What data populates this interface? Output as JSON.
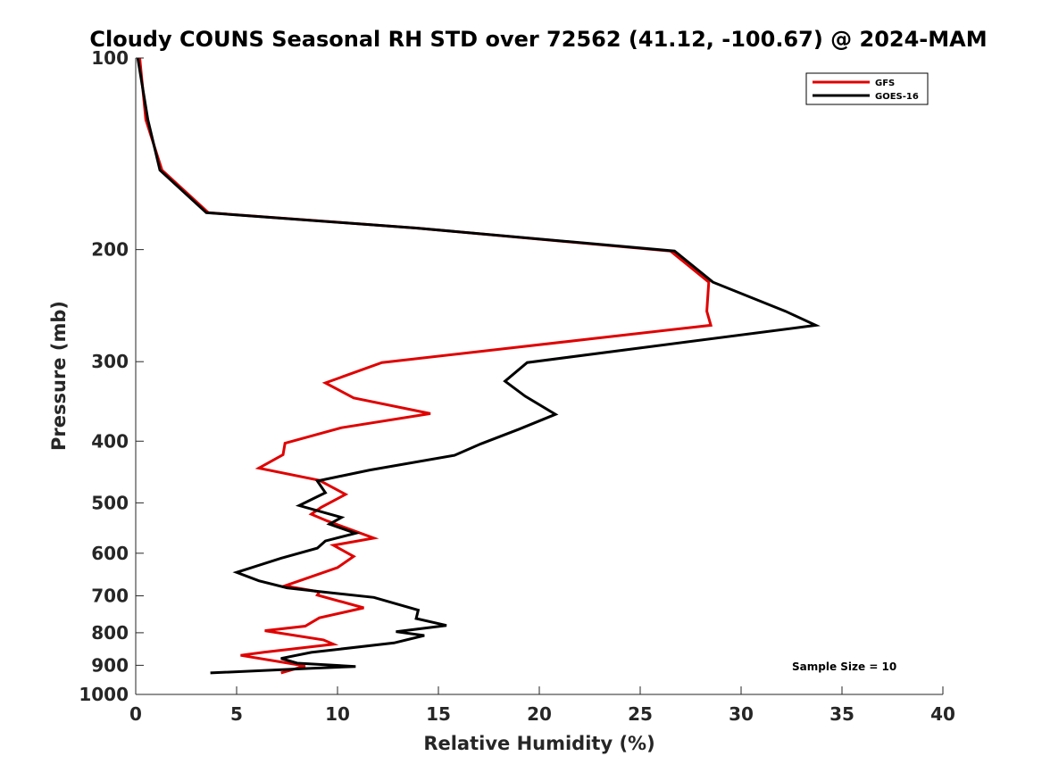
{
  "chart_data": {
    "type": "line",
    "title": "Cloudy COUNS Seasonal RH STD over 72562 (41.12, -100.67) @ 2024-MAM",
    "xlabel": "Relative Humidity (%)",
    "ylabel": "Pressure (mb)",
    "xlim": [
      0,
      40
    ],
    "ylim": [
      100,
      1000
    ],
    "y_scale": "log",
    "y_reversed": true,
    "x_ticks": [
      "0",
      "5",
      "10",
      "15",
      "20",
      "25",
      "30",
      "35",
      "40"
    ],
    "y_ticks": [
      "100",
      "200",
      "300",
      "400",
      "500",
      "600",
      "700",
      "800",
      "900",
      "1000"
    ],
    "legend_location": "top-right",
    "annotation": "Sample Size = 10",
    "series": [
      {
        "name": "GFS",
        "color": "#e00000",
        "points": [
          [
            0.2,
            100
          ],
          [
            0.5,
            125
          ],
          [
            1.3,
            150
          ],
          [
            3.6,
            175
          ],
          [
            13.9,
            185
          ],
          [
            26.5,
            201
          ],
          [
            28.4,
            225
          ],
          [
            28.3,
            250
          ],
          [
            28.5,
            263
          ],
          [
            12.2,
            301
          ],
          [
            9.4,
            324
          ],
          [
            10.8,
            342
          ],
          [
            14.6,
            362
          ],
          [
            10.2,
            381
          ],
          [
            7.4,
            403
          ],
          [
            7.3,
            420
          ],
          [
            6.1,
            441
          ],
          [
            9.1,
            461
          ],
          [
            10.4,
            485
          ],
          [
            9.2,
            508
          ],
          [
            8.7,
            521
          ],
          [
            9.5,
            534
          ],
          [
            11.8,
            568
          ],
          [
            9.8,
            583
          ],
          [
            10.8,
            607
          ],
          [
            10.0,
            632
          ],
          [
            7.4,
            675
          ],
          [
            9.1,
            690
          ],
          [
            9.0,
            698
          ],
          [
            11.3,
            731
          ],
          [
            9.1,
            758
          ],
          [
            8.4,
            781
          ],
          [
            6.4,
            794
          ],
          [
            9.3,
            821
          ],
          [
            9.8,
            834
          ],
          [
            6.4,
            858
          ],
          [
            5.2,
            868
          ],
          [
            8.4,
            902
          ],
          [
            7.2,
            925
          ]
        ]
      },
      {
        "name": "GOES-16",
        "color": "#000000",
        "points": [
          [
            0.1,
            100
          ],
          [
            0.6,
            125
          ],
          [
            1.2,
            150
          ],
          [
            3.5,
            175
          ],
          [
            13.9,
            185
          ],
          [
            26.7,
            201
          ],
          [
            28.6,
            225
          ],
          [
            32.2,
            250
          ],
          [
            33.7,
            263
          ],
          [
            19.4,
            301
          ],
          [
            18.3,
            322
          ],
          [
            19.3,
            340
          ],
          [
            20.8,
            363
          ],
          [
            19.0,
            383
          ],
          [
            17.1,
            404
          ],
          [
            15.8,
            421
          ],
          [
            11.6,
            444
          ],
          [
            9.0,
            462
          ],
          [
            9.4,
            482
          ],
          [
            8.1,
            505
          ],
          [
            10.2,
            527
          ],
          [
            9.6,
            540
          ],
          [
            10.9,
            558
          ],
          [
            9.4,
            574
          ],
          [
            9.0,
            589
          ],
          [
            7.2,
            611
          ],
          [
            5.0,
            643
          ],
          [
            6.1,
            663
          ],
          [
            7.5,
            680
          ],
          [
            9.1,
            689
          ],
          [
            11.8,
            704
          ],
          [
            14.0,
            737
          ],
          [
            13.9,
            760
          ],
          [
            15.4,
            779
          ],
          [
            12.9,
            797
          ],
          [
            14.3,
            808
          ],
          [
            12.8,
            830
          ],
          [
            8.7,
            859
          ],
          [
            7.2,
            878
          ],
          [
            8.0,
            893
          ],
          [
            10.9,
            904
          ],
          [
            8.7,
            910
          ],
          [
            3.7,
            925
          ]
        ]
      }
    ]
  }
}
